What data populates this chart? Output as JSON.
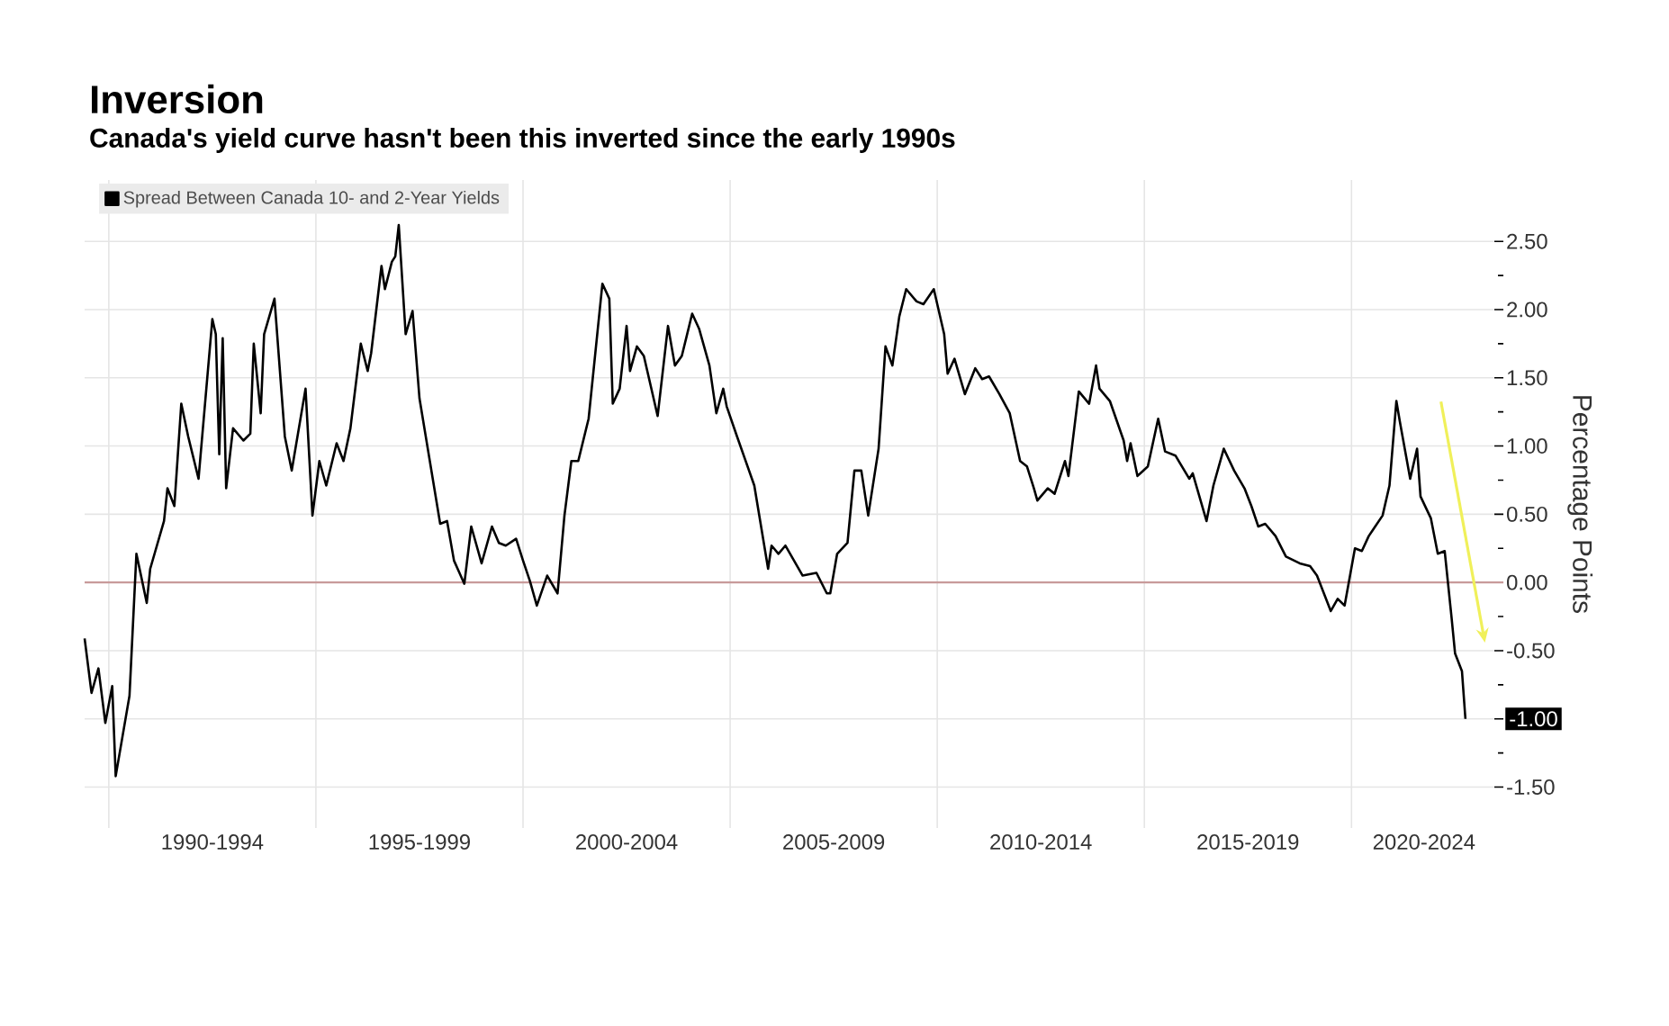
{
  "chart_data": {
    "type": "line",
    "title": "Inversion",
    "subtitle": "Canada's yield curve hasn't been this inverted since the early 1990s",
    "ylabel": "Percentage Points",
    "xlim": [
      "1989-06",
      "2023-09"
    ],
    "ylim": [
      -1.8,
      2.95
    ],
    "xticks": [
      {
        "value": "1990",
        "label": null
      },
      {
        "value": "1995",
        "label": null
      },
      {
        "value": "2000",
        "label": null
      },
      {
        "value": "2005",
        "label": null
      },
      {
        "value": "2010",
        "label": null
      },
      {
        "value": "2015",
        "label": null
      },
      {
        "value": "2020",
        "label": null
      },
      {
        "value": "1992-07",
        "label": "1990-1994"
      },
      {
        "value": "1997-07",
        "label": "1995-1999"
      },
      {
        "value": "2002-07",
        "label": "2000-2004"
      },
      {
        "value": "2007-07",
        "label": "2005-2009"
      },
      {
        "value": "2012-07",
        "label": "2010-2014"
      },
      {
        "value": "2017-07",
        "label": "2015-2019"
      },
      {
        "value": "2021-10",
        "label": "2020-2024"
      }
    ],
    "yticks": [
      {
        "value": -1.5,
        "label": "-1.50"
      },
      {
        "value": -1.0,
        "label": null
      },
      {
        "value": -0.5,
        "label": "-0.50"
      },
      {
        "value": 0,
        "label": "0.00"
      },
      {
        "value": 0.5,
        "label": "0.50"
      },
      {
        "value": 1.0,
        "label": "1.00"
      },
      {
        "value": 1.5,
        "label": "1.50"
      },
      {
        "value": 2.0,
        "label": "2.00"
      },
      {
        "value": 2.5,
        "label": "2.50"
      }
    ],
    "grid": true,
    "legend": "top left",
    "marker": "none",
    "line_style": "solid",
    "ref_lines": [
      {
        "axis": "y",
        "value": 0,
        "color": "#c89a9a"
      }
    ],
    "annotations": [
      {
        "text": "-1.00",
        "x": "2022-10",
        "y": -1.0
      }
    ],
    "series": [
      {
        "name": "Spread Between Canada 10- and 2-Year Yields",
        "color": "#000000",
        "x": [
          "1989-06",
          "1989-08",
          "1989-10",
          "1989-12",
          "1990-02",
          "1990-03",
          "1990-07",
          "1990-09",
          "1990-12",
          "1991-01",
          "1991-05",
          "1991-06",
          "1991-08",
          "1991-10",
          "1991-12",
          "1992-03",
          "1992-07",
          "1992-08",
          "1992-09",
          "1992-10",
          "1992-11",
          "1993-01",
          "1993-04",
          "1993-06",
          "1993-07",
          "1993-09",
          "1993-10",
          "1994-01",
          "1994-04",
          "1994-06",
          "1994-10",
          "1994-12",
          "1995-02",
          "1995-04",
          "1995-07",
          "1995-09",
          "1995-11",
          "1996-02",
          "1996-04",
          "1996-05",
          "1996-08",
          "1996-09",
          "1996-11",
          "1996-12",
          "1997-01",
          "1997-03",
          "1997-05",
          "1997-07",
          "1998-01",
          "1998-03",
          "1998-05",
          "1998-08",
          "1998-10",
          "1999-01",
          "1999-04",
          "1999-06",
          "1999-08",
          "1999-11",
          "2000-01",
          "2000-03",
          "2000-05",
          "2000-08",
          "2000-11",
          "2001-01",
          "2001-03",
          "2001-05",
          "2001-08",
          "2001-12",
          "2002-02",
          "2002-03",
          "2002-05",
          "2002-07",
          "2002-08",
          "2002-10",
          "2002-12",
          "2003-04",
          "2003-07",
          "2003-09",
          "2003-11",
          "2004-02",
          "2004-04",
          "2004-07",
          "2004-09",
          "2004-11",
          "2004-12",
          "2005-03",
          "2005-08",
          "2005-12",
          "2006-01",
          "2006-03",
          "2006-05",
          "2006-10",
          "2007-02",
          "2007-05",
          "2007-06",
          "2007-08",
          "2007-11",
          "2008-01",
          "2008-03",
          "2008-05",
          "2008-08",
          "2008-10",
          "2008-12",
          "2009-02",
          "2009-04",
          "2009-07",
          "2009-09",
          "2009-12",
          "2010-03",
          "2010-04",
          "2010-06",
          "2010-09",
          "2010-12",
          "2011-02",
          "2011-04",
          "2011-07",
          "2011-10",
          "2012-01",
          "2012-03",
          "2012-05",
          "2012-06",
          "2012-09",
          "2012-11",
          "2013-02",
          "2013-03",
          "2013-06",
          "2013-09",
          "2013-11",
          "2013-12",
          "2014-03",
          "2014-07",
          "2014-08",
          "2014-09",
          "2014-11",
          "2015-02",
          "2015-05",
          "2015-07",
          "2015-10",
          "2016-02",
          "2016-03",
          "2016-07",
          "2016-09",
          "2016-12",
          "2017-03",
          "2017-06",
          "2017-08",
          "2017-10",
          "2017-12",
          "2018-03",
          "2018-06",
          "2018-10",
          "2019-01",
          "2019-03",
          "2019-07",
          "2019-09",
          "2019-11",
          "2020-02",
          "2020-04",
          "2020-06",
          "2020-10",
          "2020-12",
          "2021-02",
          "2021-03",
          "2021-06",
          "2021-08",
          "2021-09",
          "2021-12",
          "2022-02",
          "2022-04",
          "2022-06",
          "2022-07",
          "2022-09",
          "2022-10"
        ],
        "values": [
          -0.41,
          -0.81,
          -0.63,
          -1.03,
          -0.76,
          -1.42,
          -0.83,
          0.21,
          -0.15,
          0.1,
          0.45,
          0.69,
          0.56,
          1.31,
          1.07,
          0.76,
          1.93,
          1.82,
          0.94,
          1.79,
          0.69,
          1.13,
          1.04,
          1.09,
          1.75,
          1.24,
          1.82,
          2.08,
          1.07,
          0.82,
          1.42,
          0.49,
          0.89,
          0.71,
          1.02,
          0.89,
          1.13,
          1.75,
          1.55,
          1.68,
          2.32,
          2.15,
          2.35,
          2.39,
          2.62,
          1.82,
          1.99,
          1.35,
          0.43,
          0.45,
          0.16,
          -0.01,
          0.41,
          0.14,
          0.41,
          0.29,
          0.27,
          0.32,
          0.16,
          0.01,
          -0.17,
          0.05,
          -0.08,
          0.49,
          0.89,
          0.89,
          1.2,
          2.19,
          2.08,
          1.31,
          1.42,
          1.88,
          1.55,
          1.73,
          1.66,
          1.22,
          1.88,
          1.59,
          1.66,
          1.97,
          1.86,
          1.59,
          1.24,
          1.42,
          1.29,
          1.07,
          0.71,
          0.1,
          0.27,
          0.21,
          0.27,
          0.05,
          0.07,
          -0.08,
          -0.08,
          0.21,
          0.29,
          0.82,
          0.82,
          0.49,
          0.98,
          1.73,
          1.59,
          1.95,
          2.15,
          2.06,
          2.04,
          2.15,
          1.82,
          1.53,
          1.64,
          1.38,
          1.57,
          1.49,
          1.51,
          1.38,
          1.24,
          0.89,
          0.85,
          0.69,
          0.6,
          0.69,
          0.65,
          0.89,
          0.78,
          1.4,
          1.31,
          1.59,
          1.42,
          1.33,
          1.04,
          0.89,
          1.02,
          0.78,
          0.85,
          1.2,
          0.96,
          0.93,
          0.76,
          0.8,
          0.45,
          0.71,
          0.98,
          0.82,
          0.69,
          0.56,
          0.41,
          0.43,
          0.34,
          0.19,
          0.14,
          0.12,
          0.05,
          -0.21,
          -0.12,
          -0.17,
          0.25,
          0.23,
          0.34,
          0.49,
          0.71,
          1.33,
          1.18,
          0.76,
          0.98,
          0.63,
          0.47,
          0.21,
          0.23,
          -0.26,
          -0.52,
          -0.65,
          -1.0
        ]
      }
    ]
  }
}
